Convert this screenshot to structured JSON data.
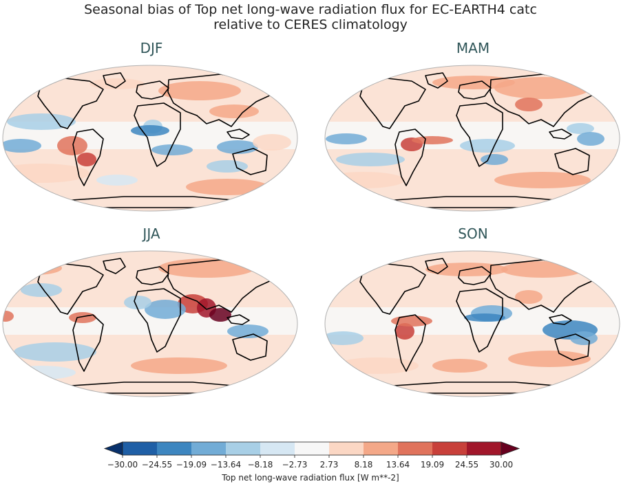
{
  "figure": {
    "title_line1": "Seasonal bias of Top net long-wave radiation flux for EC-EARTH4 catc",
    "title_line2": "relative to CERES climatology"
  },
  "chart_data": {
    "type": "heatmap",
    "panels": [
      {
        "id": "djf",
        "title": "DJF"
      },
      {
        "id": "mam",
        "title": "MAM"
      },
      {
        "id": "jja",
        "title": "JJA"
      },
      {
        "id": "son",
        "title": "SON"
      }
    ],
    "colorbar": {
      "label": "Top net long-wave radiation flux [W m**-2]",
      "ticks": [
        "−30.00",
        "−24.55",
        "−19.09",
        "−13.64",
        "−8.18",
        "−2.73",
        "2.73",
        "8.18",
        "13.64",
        "19.09",
        "24.55",
        "30.00"
      ],
      "levels": [
        -30.0,
        -24.55,
        -19.09,
        -13.64,
        -8.18,
        -2.73,
        2.73,
        8.18,
        13.64,
        19.09,
        24.55,
        30.0
      ],
      "range": [
        -30,
        30
      ],
      "extend": "both",
      "colors": [
        "#08306b",
        "#1f5fa6",
        "#3d86c0",
        "#72acd6",
        "#a8cfe6",
        "#d6e7f3",
        "#f7f7f7",
        "#fbd7c4",
        "#f4a888",
        "#e0735c",
        "#c8403a",
        "#a1162a",
        "#67001f"
      ]
    }
  }
}
